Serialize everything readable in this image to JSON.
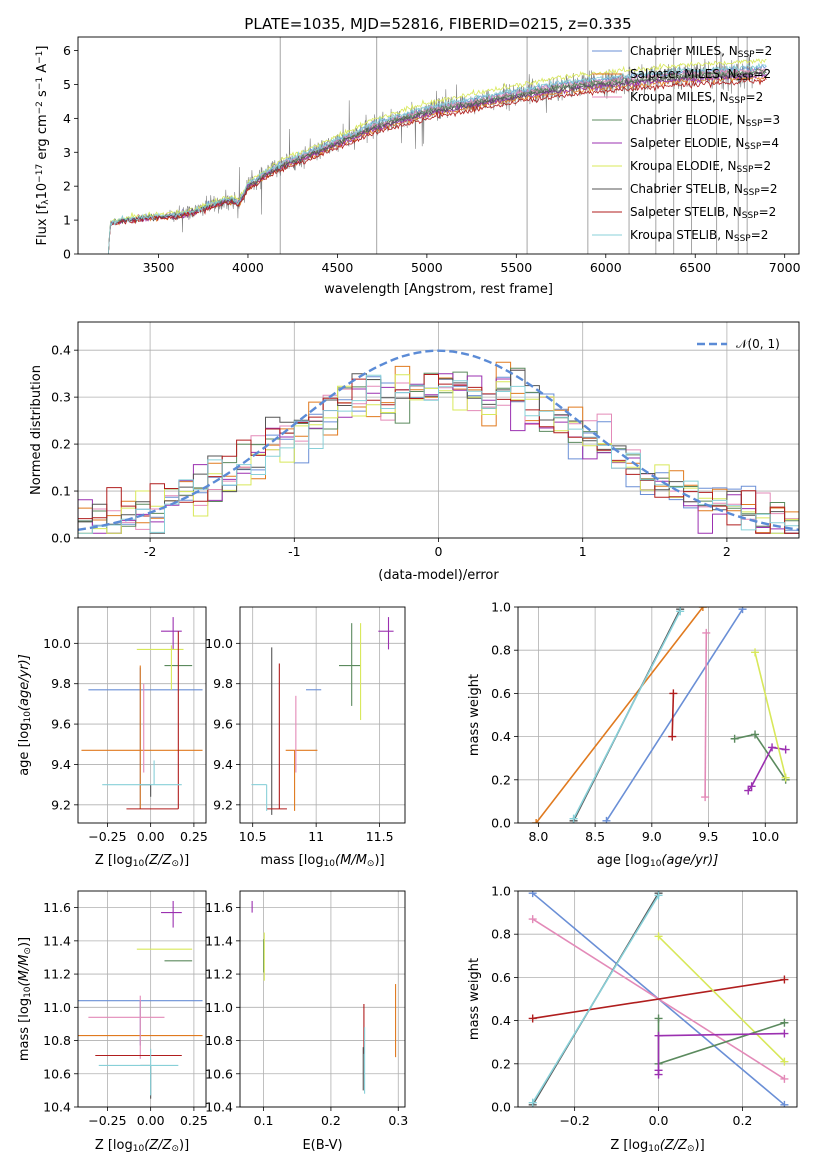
{
  "figure": {
    "title": "PLATE=1035, MJD=52816, FIBERID=0215, z=0.335"
  },
  "series_colors": {
    "chabrier_miles": "#6a8fd6",
    "salpeter_miles": "#e07a1f",
    "kroupa_miles": "#e38ab8",
    "chabrier_elodie": "#5b8a5e",
    "salpeter_elodie": "#9b30b0",
    "kroupa_elodie": "#d8e85a",
    "chabrier_stelib": "#555555",
    "salpeter_stelib": "#b01e1e",
    "kroupa_stelib": "#88d0d8",
    "data": "#7f7f7f",
    "normal": "#5b8bd6"
  },
  "chart_data": [
    {
      "id": "spectrum",
      "type": "line",
      "title": "PLATE=1035, MJD=52816, FIBERID=0215, z=0.335",
      "xlabel": "wavelength [Angstrom, rest frame]",
      "ylabel": "Flux [f",
      "ylabel_parts": [
        "Flux [f",
        "λ",
        "10",
        "−17",
        " erg cm",
        "−2",
        " s",
        "−1",
        " A",
        "−1",
        "]"
      ],
      "xlim": [
        3050,
        7080
      ],
      "ylim": [
        0,
        6.4
      ],
      "xticks": [
        3500,
        4000,
        4500,
        5000,
        5500,
        6000,
        6500,
        7000
      ],
      "yticks": [
        0,
        1,
        2,
        3,
        4,
        5,
        6
      ],
      "legend_position": "top-right",
      "legend": [
        {
          "name": "Chabrier MILES, N",
          "sub": "SSP",
          "suffix": "=2"
        },
        {
          "name": "Salpeter MILES, N",
          "sub": "SSP",
          "suffix": "=2"
        },
        {
          "name": "Kroupa MILES, N",
          "sub": "SSP",
          "suffix": "=2"
        },
        {
          "name": "Chabrier ELODIE, N",
          "sub": "SSP",
          "suffix": "=3"
        },
        {
          "name": "Salpeter ELODIE, N",
          "sub": "SSP",
          "suffix": "=4"
        },
        {
          "name": "Kroupa ELODIE, N",
          "sub": "SSP",
          "suffix": "=2"
        },
        {
          "name": "Chabrier STELIB, N",
          "sub": "SSP",
          "suffix": "=2"
        },
        {
          "name": "Salpeter STELIB, N",
          "sub": "SSP",
          "suffix": "=2"
        },
        {
          "name": "Kroupa STELIB, N",
          "sub": "SSP",
          "suffix": "=2"
        }
      ],
      "model_continuum": {
        "x": [
          3220,
          3230,
          3300,
          3400,
          3500,
          3600,
          3700,
          3800,
          3900,
          3950,
          4000,
          4100,
          4200,
          4300,
          4400,
          4500,
          4600,
          4700,
          4800,
          4900,
          5000,
          5100,
          5200,
          5300,
          5400,
          5500,
          5600,
          5700,
          5800,
          5900,
          6000,
          6200,
          6400,
          6600,
          6800,
          6900
        ],
        "y": [
          0.0,
          0.9,
          1.0,
          1.05,
          1.1,
          1.15,
          1.25,
          1.45,
          1.6,
          1.5,
          2.0,
          2.35,
          2.65,
          2.85,
          3.05,
          3.3,
          3.5,
          3.75,
          3.9,
          4.05,
          4.2,
          4.3,
          4.4,
          4.5,
          4.6,
          4.7,
          4.78,
          4.88,
          4.95,
          5.0,
          5.05,
          5.15,
          5.25,
          5.3,
          5.35,
          5.4
        ]
      },
      "data_flux": {
        "x_start": 3560,
        "x_end": 6820,
        "spike_wavelengths": [
          4180,
          4720,
          5560,
          5900,
          6130,
          6280,
          6380,
          6480,
          6620,
          6740,
          6790
        ]
      }
    },
    {
      "id": "residuals",
      "type": "histogram",
      "xlabel": "(data-model)/error",
      "ylabel": "Normed distribution",
      "xlim": [
        -2.5,
        2.5
      ],
      "ylim": [
        0,
        0.46
      ],
      "xticks": [
        -2,
        -1,
        0,
        1,
        2
      ],
      "yticks": [
        0.0,
        0.1,
        0.2,
        0.3,
        0.4
      ],
      "legend_position": "top-right",
      "legend": [
        {
          "name": "𝒩(0, 1)"
        }
      ],
      "bins": 50,
      "normal": {
        "mean": 0,
        "sigma": 1
      }
    },
    {
      "id": "age_vs_Z",
      "type": "scatter-errorbar",
      "xlabel": "Z [log",
      "xlabel_parts": [
        "Z [log",
        "10",
        "(Z/Z",
        "⊙",
        ")]"
      ],
      "ylabel_parts": [
        "age  [log",
        "10",
        "(age/yr)]"
      ],
      "xlim": [
        -0.42,
        0.32
      ],
      "ylim": [
        9.11,
        10.18
      ],
      "xticks": [
        -0.25,
        0.0,
        0.25
      ],
      "xtick_labels": [
        "−0.25",
        "0.00",
        "0.25"
      ],
      "yticks": [
        9.2,
        9.4,
        9.6,
        9.8,
        10.0
      ],
      "points": [
        {
          "model": "chabrier_miles",
          "x": -0.06,
          "xerr": [
            0.3,
            0.36
          ],
          "y": 9.77,
          "yerr": [
            0.59,
            0.11
          ]
        },
        {
          "model": "salpeter_miles",
          "x": -0.06,
          "xerr": [
            0.34,
            0.36
          ],
          "y": 9.47,
          "yerr": [
            0.29,
            0.42
          ]
        },
        {
          "model": "kroupa_miles",
          "x": -0.04,
          "xerr": [
            0.0,
            0.0
          ],
          "y": 9.62,
          "yerr": [
            0.26,
            0.18
          ]
        },
        {
          "model": "chabrier_elodie",
          "x": 0.16,
          "xerr": [
            0.08,
            0.08
          ],
          "y": 9.89,
          "yerr": [
            0.0,
            0.0
          ]
        },
        {
          "model": "salpeter_elodie",
          "x": 0.13,
          "xerr": [
            0.07,
            0.05
          ],
          "y": 10.06,
          "yerr": [
            0.09,
            0.07
          ]
        },
        {
          "model": "kroupa_elodie",
          "x": 0.12,
          "xerr": [
            0.2,
            0.07
          ],
          "y": 9.97,
          "yerr": [
            0.2,
            0.02
          ]
        },
        {
          "model": "chabrier_stelib",
          "x": 0.0,
          "xerr": [
            0.06,
            0.0
          ],
          "y": 9.3,
          "yerr": [
            0.06,
            0.0
          ]
        },
        {
          "model": "salpeter_stelib",
          "x": 0.16,
          "xerr": [
            0.3,
            0.0
          ],
          "y": 9.18,
          "yerr": [
            0.0,
            0.88
          ]
        },
        {
          "model": "kroupa_stelib",
          "x": 0.02,
          "xerr": [
            0.3,
            0.16
          ],
          "y": 9.3,
          "yerr": [
            0.0,
            0.12
          ]
        }
      ]
    },
    {
      "id": "age_vs_mass",
      "type": "scatter-errorbar",
      "xlabel_parts": [
        "mass [log",
        "10",
        "(M/M",
        "⊙",
        ")]"
      ],
      "xlim": [
        10.4,
        11.7
      ],
      "ylim": [
        9.11,
        10.18
      ],
      "xticks": [
        10.5,
        11.0,
        11.5
      ],
      "yticks": [
        9.2,
        9.4,
        9.6,
        9.8,
        10.0
      ],
      "points": [
        {
          "model": "chabrier_miles",
          "x": 11.04,
          "xerr": [
            0.12,
            0.0
          ],
          "y": 9.77,
          "yerr": [
            0.0,
            0.0
          ]
        },
        {
          "model": "salpeter_miles",
          "x": 10.83,
          "xerr": [
            0.07,
            0.18
          ],
          "y": 9.47,
          "yerr": [
            0.3,
            0.0
          ]
        },
        {
          "model": "kroupa_miles",
          "x": 10.84,
          "xerr": [
            0.0,
            0.0
          ],
          "y": 9.62,
          "yerr": [
            0.26,
            0.12
          ]
        },
        {
          "model": "chabrier_elodie",
          "x": 11.28,
          "xerr": [
            0.1,
            0.07
          ],
          "y": 9.89,
          "yerr": [
            0.2,
            0.21
          ]
        },
        {
          "model": "salpeter_elodie",
          "x": 11.57,
          "xerr": [
            0.08,
            0.04
          ],
          "y": 10.06,
          "yerr": [
            0.09,
            0.07
          ]
        },
        {
          "model": "kroupa_elodie",
          "x": 11.35,
          "xerr": [
            0.0,
            0.0
          ],
          "y": 9.97,
          "yerr": [
            0.35,
            0.13
          ]
        },
        {
          "model": "chabrier_stelib",
          "x": 10.65,
          "xerr": [
            0.0,
            0.0
          ],
          "y": 9.3,
          "yerr": [
            0.15,
            0.68
          ]
        },
        {
          "model": "salpeter_stelib",
          "x": 10.71,
          "xerr": [
            0.1,
            0.06
          ],
          "y": 9.18,
          "yerr": [
            0.0,
            0.72
          ]
        },
        {
          "model": "kroupa_stelib",
          "x": 10.61,
          "xerr": [
            0.12,
            0.0
          ],
          "y": 9.3,
          "yerr": [
            0.13,
            0.0
          ]
        }
      ]
    },
    {
      "id": "massweight_vs_age",
      "type": "line",
      "xlabel_parts": [
        "age  [log",
        "10",
        "(age/yr)]"
      ],
      "ylabel": "mass weight",
      "xlim": [
        7.82,
        10.28
      ],
      "ylim": [
        0.0,
        1.0
      ],
      "xticks": [
        8.0,
        8.5,
        9.0,
        9.5,
        10.0
      ],
      "xtick_labels": [
        "8.0",
        "8.5",
        "9.0",
        "9.5",
        "10.0"
      ],
      "yticks": [
        0.0,
        0.2,
        0.4,
        0.6,
        0.8,
        1.0
      ],
      "ytick_labels": [
        "0.0",
        "0.2",
        "0.4",
        "0.6",
        "0.8",
        "1.0"
      ],
      "series": [
        {
          "model": "chabrier_miles",
          "x": [
            8.6,
            9.8
          ],
          "y": [
            0.01,
            0.99
          ]
        },
        {
          "model": "salpeter_miles",
          "x": [
            7.98,
            9.45
          ],
          "y": [
            0.0,
            1.0
          ]
        },
        {
          "model": "kroupa_miles",
          "x": [
            9.47,
            9.48
          ],
          "y": [
            0.12,
            0.88
          ]
        },
        {
          "model": "chabrier_elodie",
          "x": [
            9.73,
            9.91,
            10.18
          ],
          "y": [
            0.39,
            0.41,
            0.2
          ]
        },
        {
          "model": "salpeter_elodie",
          "x": [
            9.85,
            9.88,
            10.06,
            10.18
          ],
          "y": [
            0.15,
            0.17,
            0.35,
            0.34
          ]
        },
        {
          "model": "kroupa_elodie",
          "x": [
            9.91,
            10.18
          ],
          "y": [
            0.79,
            0.21
          ]
        },
        {
          "model": "chabrier_stelib",
          "x": [
            8.31,
            9.25
          ],
          "y": [
            0.01,
            0.99
          ]
        },
        {
          "model": "salpeter_stelib",
          "x": [
            9.18,
            9.19
          ],
          "y": [
            0.4,
            0.6
          ]
        },
        {
          "model": "kroupa_stelib",
          "x": [
            8.31,
            9.25
          ],
          "y": [
            0.02,
            0.98
          ]
        }
      ]
    },
    {
      "id": "mass_vs_Z",
      "type": "scatter-errorbar",
      "xlabel_parts": [
        "Z [log",
        "10",
        "(Z/Z",
        "⊙",
        ")]"
      ],
      "ylabel_parts": [
        "mass [log",
        "10",
        "(M/M",
        "⊙",
        ")]"
      ],
      "xlim": [
        -0.42,
        0.32
      ],
      "ylim": [
        10.4,
        11.7
      ],
      "xticks": [
        -0.25,
        0.0,
        0.25
      ],
      "xtick_labels": [
        "−0.25",
        "0.00",
        "0.25"
      ],
      "yticks": [
        10.4,
        10.6,
        10.8,
        11.0,
        11.2,
        11.4,
        11.6
      ],
      "points": [
        {
          "model": "chabrier_miles",
          "x": -0.06,
          "xerr": [
            0.36,
            0.36
          ],
          "y": 11.04,
          "yerr": [
            0.27,
            0.0
          ]
        },
        {
          "model": "salpeter_miles",
          "x": -0.06,
          "xerr": [
            0.36,
            0.36
          ],
          "y": 10.83,
          "yerr": [
            0.0,
            0.0
          ]
        },
        {
          "model": "kroupa_miles",
          "x": -0.06,
          "xerr": [
            0.3,
            0.14
          ],
          "y": 10.94,
          "yerr": [
            0.25,
            0.13
          ]
        },
        {
          "model": "chabrier_elodie",
          "x": 0.16,
          "xerr": [
            0.08,
            0.08
          ],
          "y": 11.28,
          "yerr": [
            0.0,
            0.0
          ]
        },
        {
          "model": "salpeter_elodie",
          "x": 0.13,
          "xerr": [
            0.07,
            0.05
          ],
          "y": 11.57,
          "yerr": [
            0.09,
            0.07
          ]
        },
        {
          "model": "kroupa_elodie",
          "x": 0.12,
          "xerr": [
            0.2,
            0.12
          ],
          "y": 11.35,
          "yerr": [
            0.0,
            0.0
          ]
        },
        {
          "model": "chabrier_stelib",
          "x": 0.0,
          "xerr": [
            0.06,
            0.0
          ],
          "y": 10.65,
          "yerr": [
            0.2,
            0.0
          ]
        },
        {
          "model": "salpeter_stelib",
          "x": 0.04,
          "xerr": [
            0.36,
            0.14
          ],
          "y": 10.71,
          "yerr": [
            0.0,
            0.0
          ]
        },
        {
          "model": "kroupa_stelib",
          "x": 0.0,
          "xerr": [
            0.3,
            0.16
          ],
          "y": 10.65,
          "yerr": [
            0.18,
            0.1
          ]
        }
      ]
    },
    {
      "id": "mass_vs_ebv",
      "type": "scatter-errorbar",
      "xlabel": "E(B-V)",
      "xlim": [
        0.065,
        0.31
      ],
      "ylim": [
        10.4,
        11.7
      ],
      "xticks": [
        0.1,
        0.2,
        0.3
      ],
      "xtick_labels": [
        "0.1",
        "0.2",
        "0.3"
      ],
      "yticks": [
        10.4,
        10.6,
        10.8,
        11.0,
        11.2,
        11.4,
        11.6
      ],
      "points": [
        {
          "model": "salpeter_elodie",
          "x": 0.083,
          "y": 11.57,
          "yerr": [
            0.0,
            0.07
          ]
        },
        {
          "model": "chabrier_elodie",
          "x": 0.1,
          "y": 11.31,
          "yerr": [
            0.1,
            0.1
          ]
        },
        {
          "model": "kroupa_elodie",
          "x": 0.101,
          "y": 11.3,
          "yerr": [
            0.14,
            0.15
          ]
        },
        {
          "model": "salpeter_stelib",
          "x": 0.249,
          "y": 10.78,
          "yerr": [
            0.06,
            0.24
          ]
        },
        {
          "model": "chabrier_stelib",
          "x": 0.248,
          "y": 10.65,
          "yerr": [
            0.15,
            0.11
          ]
        },
        {
          "model": "kroupa_stelib",
          "x": 0.25,
          "y": 10.68,
          "yerr": [
            0.2,
            0.2
          ]
        },
        {
          "model": "salpeter_miles",
          "x": 0.296,
          "y": 10.92,
          "yerr": [
            0.22,
            0.22
          ]
        }
      ]
    },
    {
      "id": "massweight_vs_Z",
      "type": "line",
      "xlabel_parts": [
        "Z [log",
        "10",
        "(Z/Z",
        "⊙",
        ")]"
      ],
      "ylabel": "mass weight",
      "xlim": [
        -0.335,
        0.33
      ],
      "ylim": [
        0.0,
        1.0
      ],
      "xticks": [
        -0.2,
        0.0,
        0.2
      ],
      "xtick_labels": [
        "−0.2",
        "0.0",
        "0.2"
      ],
      "yticks": [
        0.0,
        0.2,
        0.4,
        0.6,
        0.8,
        1.0
      ],
      "ytick_labels": [
        "0.0",
        "0.2",
        "0.4",
        "0.6",
        "0.8",
        "1.0"
      ],
      "series": [
        {
          "model": "chabrier_miles",
          "x": [
            -0.3,
            0.3
          ],
          "y": [
            0.99,
            0.01
          ]
        },
        {
          "model": "kroupa_miles",
          "x": [
            -0.3,
            0.3
          ],
          "y": [
            0.87,
            0.13
          ]
        },
        {
          "model": "salpeter_stelib",
          "x": [
            -0.3,
            0.3
          ],
          "y": [
            0.41,
            0.59
          ]
        },
        {
          "model": "kroupa_elodie",
          "x": [
            0.0,
            0.3
          ],
          "y": [
            0.79,
            0.21
          ]
        },
        {
          "model": "chabrier_elodie",
          "x": [
            0.0,
            0.0,
            0.3
          ],
          "y": [
            0.41,
            0.2,
            0.39
          ]
        },
        {
          "model": "salpeter_elodie",
          "x": [
            0.0,
            0.0,
            0.0,
            0.3
          ],
          "y": [
            0.15,
            0.17,
            0.33,
            0.34
          ]
        },
        {
          "model": "chabrier_stelib",
          "x": [
            -0.3,
            0.0
          ],
          "y": [
            0.01,
            0.99
          ]
        },
        {
          "model": "kroupa_stelib",
          "x": [
            -0.3,
            0.0
          ],
          "y": [
            0.02,
            0.98
          ]
        }
      ]
    }
  ]
}
